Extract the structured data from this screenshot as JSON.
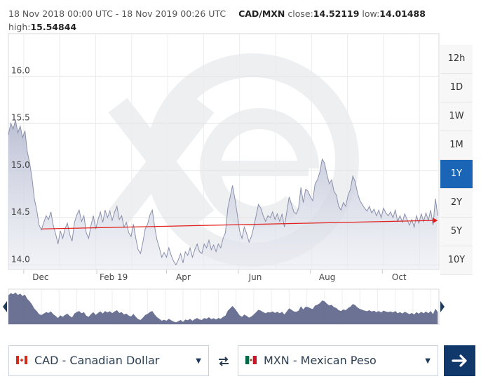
{
  "header": {
    "range_text": "18 Nov 2018 00:00 UTC - 18 Nov 2019 00:26 UTC",
    "pair": "CAD/MXN",
    "close_label": "close:",
    "close_value": "14.52119",
    "low_label": "low:",
    "low_value": "14.01488",
    "high_label": "high:",
    "high_value": "15.54844"
  },
  "range_buttons": [
    {
      "label": "12h",
      "active": false
    },
    {
      "label": "1D",
      "active": false
    },
    {
      "label": "1W",
      "active": false
    },
    {
      "label": "1M",
      "active": false
    },
    {
      "label": "1Y",
      "active": true
    },
    {
      "label": "2Y",
      "active": false
    },
    {
      "label": "5Y",
      "active": false
    },
    {
      "label": "10Y",
      "active": false
    }
  ],
  "from_currency": {
    "label": "CAD - Canadian Dollar",
    "flag": "canada-flag-icon"
  },
  "to_currency": {
    "label": "MXN - Mexican Peso",
    "flag": "mexico-flag-icon"
  },
  "icons": {
    "swap": "swap-arrows-icon",
    "go": "arrow-right-icon",
    "caret": "caret-down-icon"
  },
  "colors": {
    "accent": "#1a65b5",
    "go_button": "#10386b",
    "trend_line": "#e0201b",
    "area_fill": "#c8ccdc",
    "navigator_fill": "#5b6387"
  },
  "chart_data": {
    "type": "area",
    "title": "",
    "xlabel": "",
    "ylabel": "",
    "x_ticks": [
      "Dec",
      "Feb 19",
      "Apr",
      "Jun",
      "Aug",
      "Oct"
    ],
    "x_tick_days": [
      13,
      75,
      134,
      195,
      256,
      317
    ],
    "y_ticks": [
      14.0,
      14.5,
      15.0,
      15.5,
      16.0
    ],
    "ylim": [
      13.95,
      16.45
    ],
    "xlim": [
      0,
      365
    ],
    "grid": true,
    "legend": "none",
    "series": [
      {
        "values": [
          [
            0,
            15.38
          ],
          [
            2,
            15.5
          ],
          [
            4,
            15.44
          ],
          [
            6,
            15.53
          ],
          [
            8,
            15.4
          ],
          [
            10,
            15.47
          ],
          [
            12,
            15.35
          ],
          [
            14,
            15.42
          ],
          [
            16,
            15.2
          ],
          [
            18,
            15.08
          ],
          [
            20,
            14.92
          ],
          [
            22,
            14.7
          ],
          [
            24,
            14.58
          ],
          [
            26,
            14.42
          ],
          [
            28,
            14.37
          ],
          [
            30,
            14.45
          ],
          [
            32,
            14.52
          ],
          [
            34,
            14.48
          ],
          [
            36,
            14.56
          ],
          [
            38,
            14.42
          ],
          [
            40,
            14.33
          ],
          [
            42,
            14.22
          ],
          [
            44,
            14.36
          ],
          [
            46,
            14.28
          ],
          [
            48,
            14.38
          ],
          [
            50,
            14.44
          ],
          [
            52,
            14.32
          ],
          [
            54,
            14.25
          ],
          [
            56,
            14.45
          ],
          [
            58,
            14.53
          ],
          [
            60,
            14.58
          ],
          [
            62,
            14.46
          ],
          [
            64,
            14.52
          ],
          [
            66,
            14.34
          ],
          [
            68,
            14.28
          ],
          [
            70,
            14.42
          ],
          [
            72,
            14.52
          ],
          [
            74,
            14.38
          ],
          [
            76,
            14.48
          ],
          [
            78,
            14.56
          ],
          [
            80,
            14.45
          ],
          [
            82,
            14.58
          ],
          [
            84,
            14.5
          ],
          [
            86,
            14.57
          ],
          [
            88,
            14.47
          ],
          [
            90,
            14.56
          ],
          [
            92,
            14.62
          ],
          [
            94,
            14.48
          ],
          [
            96,
            14.52
          ],
          [
            98,
            14.4
          ],
          [
            100,
            14.45
          ],
          [
            102,
            14.34
          ],
          [
            104,
            14.3
          ],
          [
            106,
            14.43
          ],
          [
            108,
            14.28
          ],
          [
            110,
            14.16
          ],
          [
            112,
            14.12
          ],
          [
            114,
            14.24
          ],
          [
            116,
            14.38
          ],
          [
            118,
            14.43
          ],
          [
            120,
            14.53
          ],
          [
            122,
            14.58
          ],
          [
            124,
            14.4
          ],
          [
            126,
            14.26
          ],
          [
            128,
            14.18
          ],
          [
            130,
            14.08
          ],
          [
            132,
            14.13
          ],
          [
            134,
            14.08
          ],
          [
            136,
            14.18
          ],
          [
            138,
            14.1
          ],
          [
            140,
            14.04
          ],
          [
            142,
            14.0
          ],
          [
            144,
            14.05
          ],
          [
            146,
            14.12
          ],
          [
            148,
            14.02
          ],
          [
            150,
            14.14
          ],
          [
            152,
            14.1
          ],
          [
            154,
            14.18
          ],
          [
            156,
            14.08
          ],
          [
            158,
            14.16
          ],
          [
            160,
            14.22
          ],
          [
            162,
            14.14
          ],
          [
            164,
            14.12
          ],
          [
            166,
            14.22
          ],
          [
            168,
            14.18
          ],
          [
            170,
            14.26
          ],
          [
            172,
            14.16
          ],
          [
            174,
            14.21
          ],
          [
            176,
            14.14
          ],
          [
            178,
            14.22
          ],
          [
            180,
            14.18
          ],
          [
            182,
            14.28
          ],
          [
            184,
            14.34
          ],
          [
            186,
            14.6
          ],
          [
            188,
            14.72
          ],
          [
            190,
            14.84
          ],
          [
            192,
            14.7
          ],
          [
            194,
            14.54
          ],
          [
            196,
            14.36
          ],
          [
            198,
            14.28
          ],
          [
            200,
            14.4
          ],
          [
            202,
            14.33
          ],
          [
            204,
            14.24
          ],
          [
            206,
            14.3
          ],
          [
            208,
            14.4
          ],
          [
            210,
            14.52
          ],
          [
            212,
            14.64
          ],
          [
            214,
            14.6
          ],
          [
            216,
            14.52
          ],
          [
            218,
            14.46
          ],
          [
            220,
            14.52
          ],
          [
            222,
            14.5
          ],
          [
            224,
            14.56
          ],
          [
            226,
            14.48
          ],
          [
            228,
            14.54
          ],
          [
            230,
            14.46
          ],
          [
            232,
            14.54
          ],
          [
            234,
            14.4
          ],
          [
            236,
            14.56
          ],
          [
            238,
            14.72
          ],
          [
            240,
            14.64
          ],
          [
            242,
            14.56
          ],
          [
            244,
            14.54
          ],
          [
            246,
            14.6
          ],
          [
            248,
            14.82
          ],
          [
            250,
            14.66
          ],
          [
            252,
            14.8
          ],
          [
            254,
            14.78
          ],
          [
            256,
            14.72
          ],
          [
            258,
            14.68
          ],
          [
            260,
            14.86
          ],
          [
            262,
            14.9
          ],
          [
            264,
            14.98
          ],
          [
            266,
            15.12
          ],
          [
            268,
            15.08
          ],
          [
            270,
            14.96
          ],
          [
            272,
            14.86
          ],
          [
            274,
            14.9
          ],
          [
            276,
            14.78
          ],
          [
            278,
            14.74
          ],
          [
            280,
            14.62
          ],
          [
            282,
            14.58
          ],
          [
            284,
            14.66
          ],
          [
            286,
            14.62
          ],
          [
            288,
            14.74
          ],
          [
            290,
            14.8
          ],
          [
            292,
            14.94
          ],
          [
            294,
            14.88
          ],
          [
            296,
            14.76
          ],
          [
            298,
            14.68
          ],
          [
            300,
            14.64
          ],
          [
            302,
            14.6
          ],
          [
            304,
            14.57
          ],
          [
            306,
            14.62
          ],
          [
            308,
            14.55
          ],
          [
            310,
            14.59
          ],
          [
            312,
            14.52
          ],
          [
            314,
            14.58
          ],
          [
            316,
            14.5
          ],
          [
            318,
            14.6
          ],
          [
            320,
            14.55
          ],
          [
            322,
            14.52
          ],
          [
            324,
            14.56
          ],
          [
            326,
            14.5
          ],
          [
            328,
            14.58
          ],
          [
            330,
            14.46
          ],
          [
            332,
            14.52
          ],
          [
            334,
            14.45
          ],
          [
            336,
            14.54
          ],
          [
            338,
            14.48
          ],
          [
            340,
            14.42
          ],
          [
            342,
            14.48
          ],
          [
            344,
            14.4
          ],
          [
            346,
            14.52
          ],
          [
            348,
            14.44
          ],
          [
            350,
            14.54
          ],
          [
            352,
            14.46
          ],
          [
            354,
            14.55
          ],
          [
            356,
            14.47
          ],
          [
            358,
            14.58
          ],
          [
            360,
            14.42
          ],
          [
            362,
            14.7
          ],
          [
            364,
            14.52
          ]
        ]
      }
    ],
    "trend_line": {
      "start": [
        28,
        14.38
      ],
      "end": [
        364,
        14.47
      ]
    }
  }
}
